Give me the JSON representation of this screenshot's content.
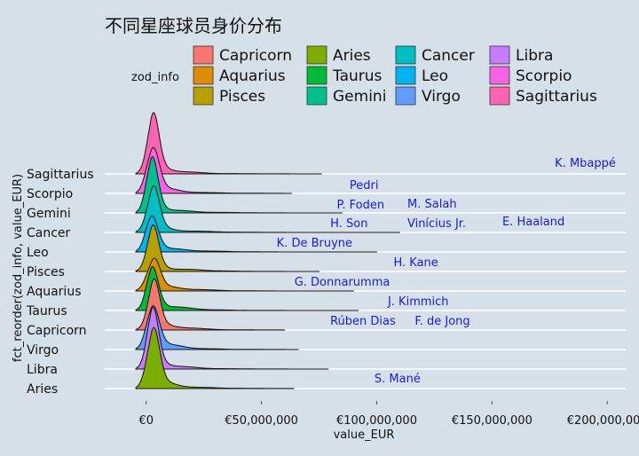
{
  "chart_data": {
    "type": "ridgeline",
    "title": "不同星座球员身价分布",
    "xlabel": "value_EUR",
    "ylabel": "fct_reorder(zod_info, value_EUR)",
    "xlim": [
      -18000000,
      208000000
    ],
    "xticks": [
      {
        "value": 0,
        "label": "€0"
      },
      {
        "value": 50000000,
        "label": "€50,000,000"
      },
      {
        "value": 100000000,
        "label": "€100,000,000"
      },
      {
        "value": 150000000,
        "label": "€150,000,000"
      },
      {
        "value": 200000000,
        "label": "€200,000,000"
      }
    ],
    "legend": {
      "title": "zod_info",
      "position": "top",
      "entries": [
        {
          "name": "Capricorn",
          "color": "#F8766D"
        },
        {
          "name": "Aquarius",
          "color": "#DE8C00"
        },
        {
          "name": "Pisces",
          "color": "#B79F00"
        },
        {
          "name": "Aries",
          "color": "#7CAE00"
        },
        {
          "name": "Taurus",
          "color": "#00BA38"
        },
        {
          "name": "Gemini",
          "color": "#00C08B"
        },
        {
          "name": "Cancer",
          "color": "#00BFC4"
        },
        {
          "name": "Leo",
          "color": "#00B4F0"
        },
        {
          "name": "Virgo",
          "color": "#619CFF"
        },
        {
          "name": "Libra",
          "color": "#C77CFF"
        },
        {
          "name": "Scorpio",
          "color": "#F564E3"
        },
        {
          "name": "Sagittarius",
          "color": "#FF64B0"
        }
      ]
    },
    "categories_bottom_to_top": [
      "Aries",
      "Libra",
      "Virgo",
      "Capricorn",
      "Taurus",
      "Aquarius",
      "Pisces",
      "Leo",
      "Cancer",
      "Gemini",
      "Scorpio",
      "Sagittarius"
    ],
    "series": [
      {
        "name": "Aries",
        "color": "#7CAE00",
        "peak": 1.0,
        "max": 64000000
      },
      {
        "name": "Libra",
        "color": "#C77CFF",
        "peak": 0.82,
        "max": 79000000
      },
      {
        "name": "Virgo",
        "color": "#619CFF",
        "peak": 0.82,
        "max": 66000000
      },
      {
        "name": "Capricorn",
        "color": "#F8766D",
        "peak": 0.82,
        "max": 60000000
      },
      {
        "name": "Taurus",
        "color": "#00BA38",
        "peak": 0.82,
        "max": 92000000
      },
      {
        "name": "Aquarius",
        "color": "#DE8C00",
        "peak": 0.82,
        "max": 90000000
      },
      {
        "name": "Pisces",
        "color": "#B79F00",
        "peak": 0.82,
        "max": 75000000
      },
      {
        "name": "Leo",
        "color": "#00B4F0",
        "peak": 0.82,
        "max": 100000000
      },
      {
        "name": "Cancer",
        "color": "#00BFC4",
        "peak": 0.82,
        "max": 110000000
      },
      {
        "name": "Gemini",
        "color": "#00C08B",
        "peak": 0.82,
        "max": 85000000
      },
      {
        "name": "Scorpio",
        "color": "#F564E3",
        "peak": 0.82,
        "max": 63000000
      },
      {
        "name": "Sagittarius",
        "color": "#FF64B0",
        "peak": 0.82,
        "max": 76000000
      }
    ],
    "annotations": [
      {
        "text": "K. Mbappé",
        "x": 190500000,
        "category": "Sagittarius",
        "offset": 0.55
      },
      {
        "text": "Pedri",
        "x": 94500000,
        "category": "Scorpio",
        "offset": 0.4
      },
      {
        "text": "P. Foden",
        "x": 93000000,
        "category": "Gemini",
        "offset": 0.4
      },
      {
        "text": "M. Salah",
        "x": 124000000,
        "category": "Gemini",
        "offset": 0.45
      },
      {
        "text": "H. Son",
        "x": 88000000,
        "category": "Cancer",
        "offset": 0.45
      },
      {
        "text": "Vinícius Jr.",
        "x": 126000000,
        "category": "Cancer",
        "offset": 0.45
      },
      {
        "text": "E. Haaland",
        "x": 168000000,
        "category": "Cancer",
        "offset": 0.55
      },
      {
        "text": "K. De Bruyne",
        "x": 73000000,
        "category": "Cancer",
        "offset": -0.55
      },
      {
        "text": "H. Kane",
        "x": 117000000,
        "category": "Pisces",
        "offset": 0.45
      },
      {
        "text": "G. Donnarumma",
        "x": 85000000,
        "category": "Aquarius",
        "offset": 0.45
      },
      {
        "text": "J. Kimmich",
        "x": 118000000,
        "category": "Taurus",
        "offset": 0.45
      },
      {
        "text": "Rúben Dias",
        "x": 94000000,
        "category": "Capricorn",
        "offset": 0.45
      },
      {
        "text": "F. de Jong",
        "x": 128500000,
        "category": "Capricorn",
        "offset": 0.45
      },
      {
        "text": "S. Mané",
        "x": 109000000,
        "category": "Aries",
        "offset": 0.5
      }
    ]
  }
}
